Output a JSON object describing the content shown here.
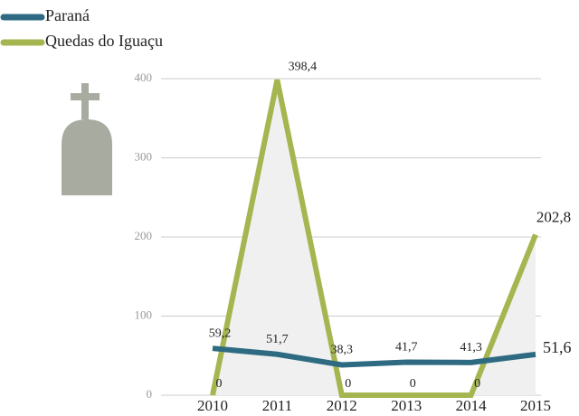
{
  "chart_data": {
    "type": "line",
    "categories": [
      "2010",
      "2011",
      "2012",
      "2013",
      "2014",
      "2015"
    ],
    "series": [
      {
        "name": "Paraná",
        "color": "#2e6b82",
        "values": [
          59.2,
          51.7,
          38.3,
          41.7,
          41.3,
          51.6
        ],
        "value_labels": [
          "59,2",
          "51,7",
          "38,3",
          "41,7",
          "41,3",
          "51,6"
        ]
      },
      {
        "name": "Quedas do Iguaçu",
        "color": "#a5b550",
        "values": [
          0,
          398.4,
          0,
          0,
          0,
          202.8
        ],
        "value_labels": [
          "0",
          "398,4",
          "0",
          "0",
          "0",
          "202,8"
        ]
      }
    ],
    "ylim": [
      0,
      400
    ],
    "yticks": [
      0,
      100,
      200,
      300,
      400
    ],
    "grid": true
  }
}
